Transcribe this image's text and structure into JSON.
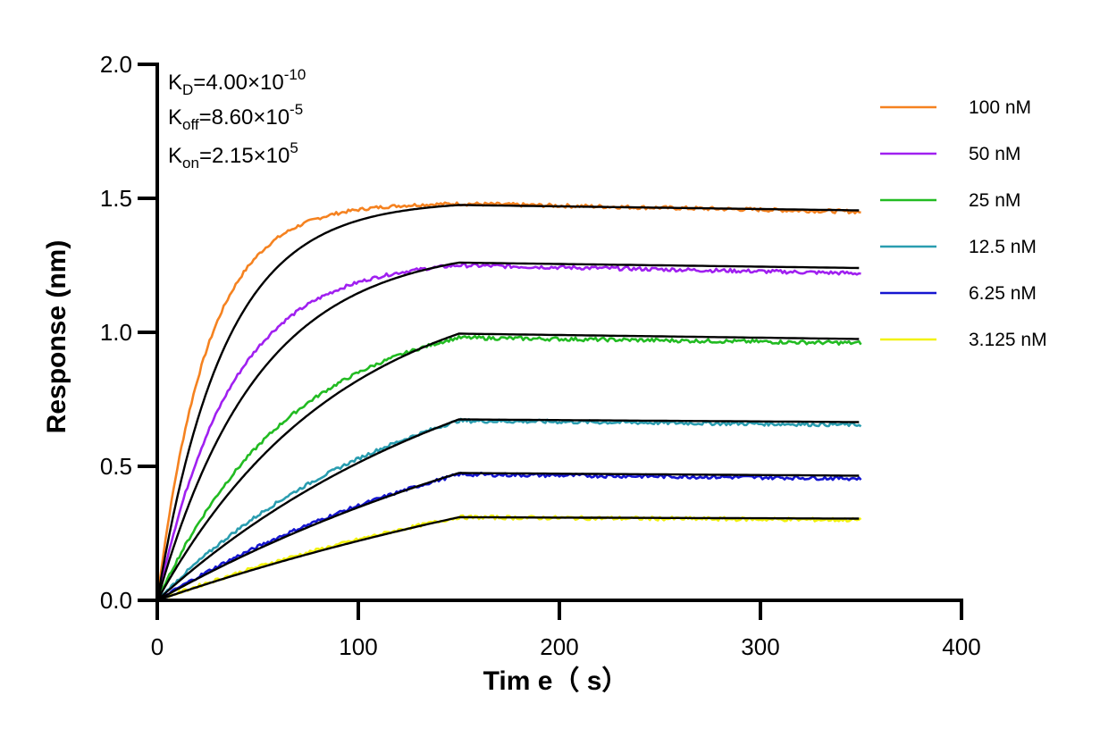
{
  "chart_data": {
    "type": "line",
    "title": "",
    "xlabel": "Tim e（ s）",
    "ylabel": "Response (nm)",
    "xlim": [
      0,
      400
    ],
    "ylim": [
      0,
      2.0
    ],
    "x_ticks": [
      "0",
      "100",
      "200",
      "300",
      "400"
    ],
    "x_tick_values": [
      0,
      100,
      200,
      300,
      400
    ],
    "y_ticks": [
      "0.0",
      "0.5",
      "1.0",
      "1.5",
      "2.0"
    ],
    "y_tick_values": [
      0,
      0.5,
      1.0,
      1.5,
      2.0
    ],
    "grid": false,
    "legend_position": "right",
    "association_end_s": 150,
    "end_s": 350,
    "kinetics": {
      "kd_label": "K",
      "kd_sub": "D",
      "kd_value": "=4.00×10",
      "kd_exp": "-10",
      "koff_label": "K",
      "koff_sub": "off",
      "koff_value": "=8.60×10",
      "koff_exp": "-5",
      "kon_label": "K",
      "kon_sub": "on",
      "kon_value": "=2.15×10",
      "kon_exp": "5"
    },
    "fit_color": "#000000",
    "series": [
      {
        "name": "100 nM",
        "color": "#F58220",
        "plateau": 1.48,
        "fit_plateau": 1.475,
        "end": 1.45,
        "fit_end": 1.455,
        "k": 0.03
      },
      {
        "name": "50 nM",
        "color": "#A020F0",
        "plateau": 1.25,
        "fit_plateau": 1.26,
        "end": 1.22,
        "fit_end": 1.24,
        "k": 0.02
      },
      {
        "name": "25 nM",
        "color": "#22BB22",
        "plateau": 0.98,
        "fit_plateau": 0.995,
        "end": 0.96,
        "fit_end": 0.975,
        "k": 0.011
      },
      {
        "name": "12.5 nM",
        "color": "#2A9DB0",
        "plateau": 0.67,
        "fit_plateau": 0.675,
        "end": 0.655,
        "fit_end": 0.665,
        "k": 0.006
      },
      {
        "name": "6.25 nM",
        "color": "#1515D0",
        "plateau": 0.47,
        "fit_plateau": 0.475,
        "end": 0.455,
        "fit_end": 0.465,
        "k": 0.004
      },
      {
        "name": "3.125 nM",
        "color": "#F2F20E",
        "plateau": 0.31,
        "fit_plateau": 0.31,
        "end": 0.3,
        "fit_end": 0.305,
        "k": 0.003
      }
    ]
  }
}
